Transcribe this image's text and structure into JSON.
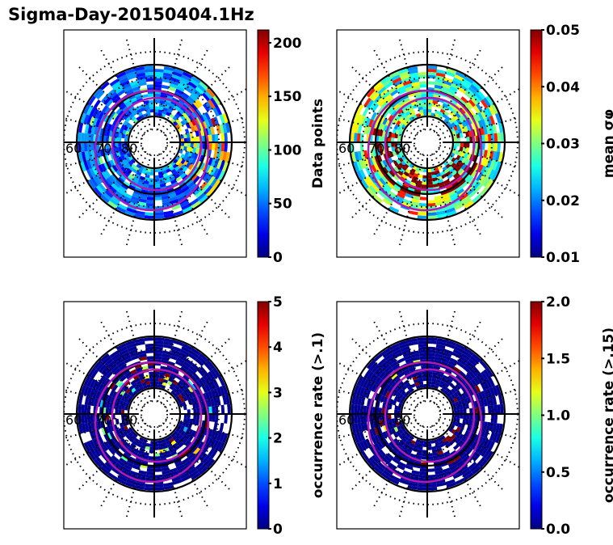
{
  "figure": {
    "title": "Sigma-Day-20150404.1Hz"
  },
  "chart_data": [
    {
      "type": "heatmap",
      "projection": "polar",
      "title": "",
      "lat_labels": [
        "60",
        "70",
        "80"
      ],
      "lat_rings": [
        60,
        70,
        80
      ],
      "colormap": "jet",
      "colorbar": {
        "label": "Data points",
        "range": [
          0,
          212
        ],
        "ticks": [
          0,
          50,
          100,
          150,
          200
        ],
        "tick_labels": [
          "0",
          "50",
          "100",
          "150",
          "200"
        ]
      },
      "description": "Mostly blue (0-80) counts on 60-85 MLAT band with yellow/red peaks (~150-200) on the dusk/right side",
      "oval_overlay": "magenta auroral oval boundaries (2)"
    },
    {
      "type": "heatmap",
      "projection": "polar",
      "title": "",
      "lat_labels": [
        "60",
        "70",
        "80"
      ],
      "lat_rings": [
        60,
        70,
        80
      ],
      "colormap": "jet",
      "colorbar": {
        "label": "mean σφ",
        "range": [
          0.01,
          0.05
        ],
        "ticks": [
          0.01,
          0.02,
          0.03,
          0.04,
          0.05
        ],
        "tick_labels": [
          "0.01",
          "0.02",
          "0.03",
          "0.04",
          "0.05"
        ]
      },
      "description": "Outer ring ~0.02-0.035, inner auroral band with dark red (>0.05) bins especially on night side",
      "oval_overlay": "magenta auroral oval boundaries (2)"
    },
    {
      "type": "heatmap",
      "projection": "polar",
      "title": "",
      "lat_labels": [
        "60",
        "70",
        "80"
      ],
      "lat_rings": [
        60,
        70,
        80
      ],
      "colormap": "jet",
      "colorbar": {
        "label": "occurrence rate (>.1)",
        "range": [
          0,
          5
        ],
        "ticks": [
          0,
          1,
          2,
          3,
          4,
          5
        ],
        "tick_labels": [
          "0",
          "1",
          "2",
          "3",
          "4",
          "5"
        ]
      },
      "description": "Mostly 0 (dark blue) with scattered high (5, dark red) bins near the auroral oval",
      "oval_overlay": "magenta auroral oval boundaries (2)"
    },
    {
      "type": "heatmap",
      "projection": "polar",
      "title": "",
      "lat_labels": [
        "60",
        "70",
        "80"
      ],
      "lat_rings": [
        60,
        70,
        80
      ],
      "colormap": "jet",
      "colorbar": {
        "label": "occurrence rate (>.15)",
        "range": [
          0.0,
          2.0
        ],
        "ticks": [
          0.0,
          0.5,
          1.0,
          1.5,
          2.0
        ],
        "tick_labels": [
          "0.0",
          "0.5",
          "1.0",
          "1.5",
          "2.0"
        ]
      },
      "description": "Mostly 0 (dark blue) with few dark red (2.0) bins near the auroral oval",
      "oval_overlay": "magenta auroral oval boundaries (2)"
    }
  ]
}
